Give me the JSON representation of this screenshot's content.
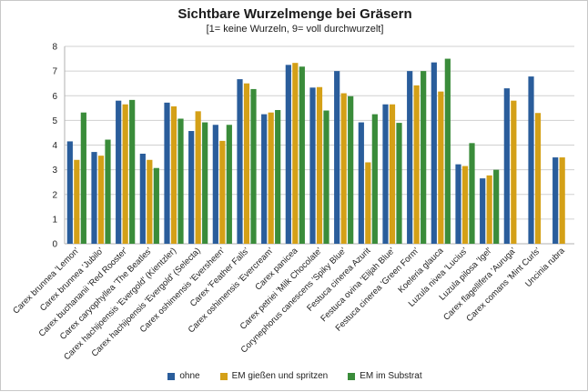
{
  "chart_data": {
    "type": "bar",
    "title": "Sichtbare Wurzelmenge bei Gräsern",
    "subtitle": "[1= keine Wurzeln, 9= voll durchwurzelt]",
    "ylim": [
      0,
      8
    ],
    "yticks": [
      0,
      1,
      2,
      3,
      4,
      5,
      6,
      7,
      8
    ],
    "grid": true,
    "legend_position": "bottom",
    "categories": [
      "Carex brunnea 'Lemon'",
      "Carex brunnea 'Jubilo'",
      "Carex buchananii 'Red Rooster'",
      "Carex caryophyllea 'The Beatles'",
      "Carex hachijoensis 'Evergold' (Kientzler)",
      "Carex hachijoensis 'Evergold' (Selecta)",
      "Carex oshimensis 'Eversheen'",
      "Carex 'Feather Falls'",
      "Carex oshimensis 'Evercream'",
      "Carex panicea",
      "Carex petriei 'Milk Chocolate'",
      "Corynephorus canescens 'Spiky Blue'",
      "Festuca cinerea Azurit",
      "Festuca ovina 'Elijah Blue'",
      "Festuca cinerea 'Green Form'",
      "Koeleria glauca",
      "Luzula nivea 'Lucius'",
      "Luzula pilosa 'Igel'",
      "Carex flagellifera 'Auruga'",
      "Carex comans 'Mint Curls'",
      "Uncinia rubra"
    ],
    "series": [
      {
        "name": "ohne",
        "color": "#2a5d9b",
        "values": [
          4.15,
          3.72,
          5.8,
          3.65,
          5.72,
          4.57,
          4.82,
          6.67,
          5.25,
          7.25,
          6.33,
          7.0,
          4.92,
          5.65,
          7.0,
          7.35,
          3.22,
          2.65,
          6.3,
          6.78,
          3.5
        ]
      },
      {
        "name": "EM gießen und spritzen",
        "color": "#d4a017",
        "values": [
          3.4,
          3.57,
          5.65,
          3.4,
          5.57,
          5.37,
          4.17,
          6.5,
          5.32,
          7.33,
          6.35,
          6.1,
          3.3,
          5.65,
          6.42,
          6.17,
          3.15,
          2.77,
          5.8,
          5.3,
          3.5
        ]
      },
      {
        "name": "EM im Substrat",
        "color": "#3a8c3a",
        "values": [
          5.32,
          4.22,
          5.83,
          3.07,
          5.07,
          4.92,
          4.82,
          6.27,
          5.42,
          7.18,
          5.4,
          5.98,
          5.25,
          4.9,
          7.0,
          7.5,
          4.08,
          3.0,
          null,
          null,
          null
        ]
      }
    ]
  }
}
